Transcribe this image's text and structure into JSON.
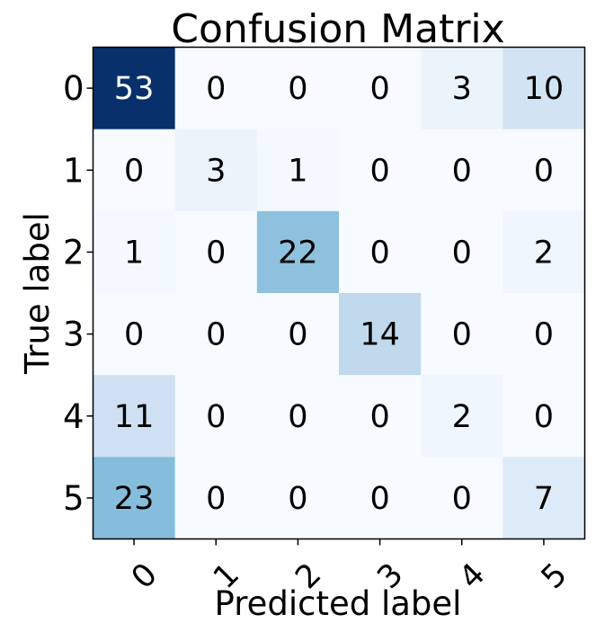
{
  "chart_data": {
    "type": "heatmap",
    "title": "Confusion Matrix",
    "xlabel": "Predicted label",
    "ylabel": "True label",
    "x_categories": [
      "0",
      "1",
      "2",
      "3",
      "4",
      "5"
    ],
    "y_categories": [
      "0",
      "1",
      "2",
      "3",
      "4",
      "5"
    ],
    "values": [
      [
        53,
        0,
        0,
        0,
        3,
        10
      ],
      [
        0,
        3,
        1,
        0,
        0,
        0
      ],
      [
        1,
        0,
        22,
        0,
        0,
        2
      ],
      [
        0,
        0,
        0,
        14,
        0,
        0
      ],
      [
        11,
        0,
        0,
        0,
        2,
        0
      ],
      [
        23,
        0,
        0,
        0,
        0,
        7
      ]
    ],
    "colormap": "Blues",
    "color_low": "#f7fbff",
    "color_high": "#08306b",
    "text_color_dark": "#000000",
    "text_color_light": "#ffffff",
    "x_tick_rotation_deg": 45,
    "grid": false
  }
}
